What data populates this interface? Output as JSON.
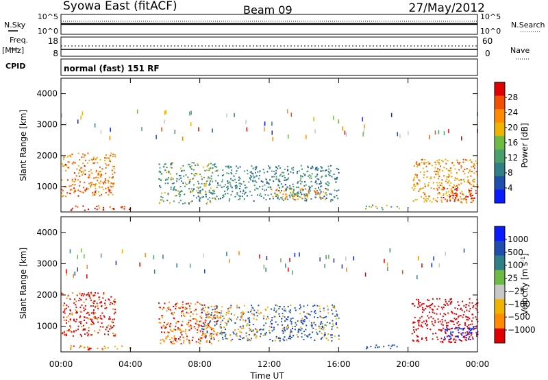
{
  "header": {
    "station": "Syowa East (fitACF)",
    "beam": "Beam 09",
    "date": "27/May/2012"
  },
  "params": {
    "nsky_label": "N.Sky",
    "nsky_ticks": [
      "10^5",
      "10^0"
    ],
    "nsearch_label": "N.Search",
    "nsearch_ticks": [
      "10^5",
      "10^0"
    ],
    "freq_label": "Freq.",
    "freq_unit": "[MHz]",
    "freq_ticks": [
      "18",
      "8"
    ],
    "nave_label": "Nave",
    "nave_ticks": [
      "60",
      "0"
    ],
    "cpid_label": "CPID",
    "cpid_value": "normal (fast) 151 RF"
  },
  "colors": {
    "scale": [
      "#0a1cff",
      "#1f4fae",
      "#2e7f86",
      "#4aa06a",
      "#6dbb44",
      "#c8c8c8",
      "#f0b400",
      "#ff8c00",
      "#f05000",
      "#e00000"
    ],
    "ground_scatter": "#9a9a9a"
  },
  "chart_data": [
    {
      "type": "heatmap",
      "panel": "power",
      "ylabel": "Slant Range [km]",
      "ylim": [
        180,
        4500
      ],
      "yticks": [
        "4000",
        "3000",
        "2000",
        "1000"
      ],
      "xlim": [
        0,
        24
      ],
      "colorbar": {
        "label": "Power [dB]",
        "ticks": [
          "28",
          "24",
          "20",
          "16",
          "12",
          "8",
          "4"
        ],
        "range": [
          0,
          30
        ]
      },
      "echo_regions": [
        {
          "t": [
            0.0,
            3.1
          ],
          "range_km": [
            700,
            2100
          ],
          "power_db": 22
        },
        {
          "t": [
            0.5,
            4.0
          ],
          "range_km": [
            250,
            400
          ],
          "power_db": 26
        },
        {
          "t": [
            5.6,
            9.0
          ],
          "range_km": [
            450,
            1800
          ],
          "power_db": 12
        },
        {
          "t": [
            9.0,
            16.0
          ],
          "range_km": [
            550,
            1700
          ],
          "power_db": 10
        },
        {
          "t": [
            12.0,
            15.3
          ],
          "range_km": [
            600,
            950
          ],
          "power_db": 20
        },
        {
          "t": [
            17.5,
            19.5
          ],
          "range_km": [
            280,
            420
          ],
          "power_db": 14
        },
        {
          "t": [
            20.2,
            24.0
          ],
          "range_km": [
            500,
            1900
          ],
          "power_db": 20
        },
        {
          "t": [
            22.0,
            24.0
          ],
          "range_km": [
            550,
            1000
          ],
          "power_db": 28
        }
      ]
    },
    {
      "type": "heatmap",
      "panel": "velocity",
      "ylabel": "Slant Range [km]",
      "xlabel": "Time UT",
      "ylim": [
        180,
        4500
      ],
      "yticks": [
        "4000",
        "3000",
        "2000",
        "1000"
      ],
      "xlim": [
        0,
        24
      ],
      "xticks": [
        "00:00",
        "04:00",
        "08:00",
        "12:00",
        "16:00",
        "20:00",
        "00:00"
      ],
      "colorbar": {
        "label": "Velocity [m s",
        "label_exp": "-1",
        "label_end": "]",
        "ticks": [
          "1000",
          "500",
          "100",
          "25",
          "−25",
          "−100",
          "−500",
          "−1000"
        ]
      },
      "echo_regions": [
        {
          "t": [
            0.0,
            3.1
          ],
          "range_km": [
            700,
            2100
          ],
          "velocity_ms": -300
        },
        {
          "t": [
            0.5,
            4.0
          ],
          "range_km": [
            250,
            400
          ],
          "velocity_ms": -150
        },
        {
          "t": [
            5.6,
            9.0
          ],
          "range_km": [
            450,
            1800
          ],
          "velocity_ms": -200
        },
        {
          "t": [
            8.0,
            12.0
          ],
          "range_km": [
            550,
            1700
          ],
          "velocity_ms": 0
        },
        {
          "t": [
            12.0,
            16.0
          ],
          "range_km": [
            550,
            1700
          ],
          "velocity_ms": 100
        },
        {
          "t": [
            17.5,
            19.5
          ],
          "range_km": [
            280,
            420
          ],
          "velocity_ms": 60
        },
        {
          "t": [
            20.2,
            24.0
          ],
          "range_km": [
            500,
            1900
          ],
          "velocity_ms": -400
        },
        {
          "t": [
            22.0,
            24.0
          ],
          "range_km": [
            550,
            1000
          ],
          "velocity_ms": 400
        }
      ]
    }
  ]
}
